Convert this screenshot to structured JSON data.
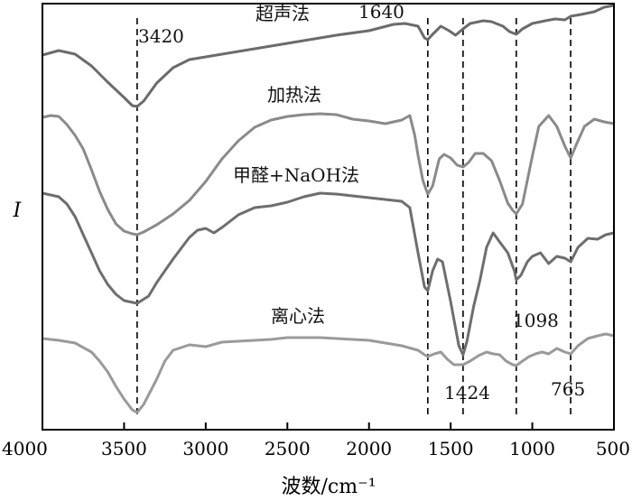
{
  "chart_data": {
    "type": "line",
    "title": "",
    "xlabel": "波数/cm⁻¹",
    "ylabel": "I",
    "xlim": [
      4000,
      500
    ],
    "x_reversed": true,
    "x_ticks": [
      4000,
      3500,
      3000,
      2500,
      2000,
      1500,
      1000,
      500
    ],
    "y_ticks_shown": false,
    "grid": false,
    "legend": "none",
    "series": [
      {
        "name": "超声法",
        "color": "#6b6b6b",
        "points": [
          [
            4000,
            61
          ],
          [
            3900,
            56
          ],
          [
            3800,
            60
          ],
          [
            3700,
            73
          ],
          [
            3600,
            91
          ],
          [
            3500,
            108
          ],
          [
            3450,
            117
          ],
          [
            3420,
            118
          ],
          [
            3380,
            112
          ],
          [
            3300,
            92
          ],
          [
            3200,
            75
          ],
          [
            3100,
            66
          ],
          [
            3000,
            63
          ],
          [
            2800,
            57
          ],
          [
            2600,
            51
          ],
          [
            2400,
            45
          ],
          [
            2200,
            39
          ],
          [
            2000,
            34
          ],
          [
            1850,
            27
          ],
          [
            1780,
            26
          ],
          [
            1700,
            29
          ],
          [
            1660,
            42
          ],
          [
            1640,
            44
          ],
          [
            1610,
            38
          ],
          [
            1560,
            29
          ],
          [
            1510,
            34
          ],
          [
            1470,
            39
          ],
          [
            1424,
            32
          ],
          [
            1380,
            26
          ],
          [
            1300,
            23
          ],
          [
            1250,
            24
          ],
          [
            1180,
            29
          ],
          [
            1140,
            35
          ],
          [
            1098,
            38
          ],
          [
            1060,
            32
          ],
          [
            1000,
            26
          ],
          [
            920,
            23
          ],
          [
            860,
            21
          ],
          [
            800,
            22
          ],
          [
            765,
            18
          ],
          [
            700,
            16
          ],
          [
            620,
            13
          ],
          [
            560,
            8
          ],
          [
            500,
            6
          ]
        ]
      },
      {
        "name": "加热法",
        "color": "#8a8a8a",
        "points": [
          [
            4000,
            130
          ],
          [
            3950,
            128
          ],
          [
            3900,
            129
          ],
          [
            3850,
            138
          ],
          [
            3800,
            150
          ],
          [
            3750,
            165
          ],
          [
            3700,
            188
          ],
          [
            3650,
            212
          ],
          [
            3600,
            232
          ],
          [
            3550,
            248
          ],
          [
            3500,
            256
          ],
          [
            3450,
            259
          ],
          [
            3420,
            260
          ],
          [
            3380,
            257
          ],
          [
            3300,
            249
          ],
          [
            3200,
            237
          ],
          [
            3100,
            222
          ],
          [
            3000,
            201
          ],
          [
            2900,
            176
          ],
          [
            2800,
            156
          ],
          [
            2700,
            141
          ],
          [
            2600,
            133
          ],
          [
            2500,
            129
          ],
          [
            2400,
            127
          ],
          [
            2300,
            126
          ],
          [
            2200,
            127
          ],
          [
            2100,
            132
          ],
          [
            2000,
            134
          ],
          [
            1900,
            137
          ],
          [
            1800,
            133
          ],
          [
            1750,
            128
          ],
          [
            1720,
            150
          ],
          [
            1700,
            172
          ],
          [
            1670,
            200
          ],
          [
            1640,
            215
          ],
          [
            1610,
            206
          ],
          [
            1570,
            176
          ],
          [
            1540,
            171
          ],
          [
            1500,
            175
          ],
          [
            1460,
            183
          ],
          [
            1424,
            185
          ],
          [
            1390,
            180
          ],
          [
            1350,
            170
          ],
          [
            1300,
            170
          ],
          [
            1250,
            178
          ],
          [
            1200,
            200
          ],
          [
            1150,
            225
          ],
          [
            1120,
            233
          ],
          [
            1098,
            237
          ],
          [
            1060,
            226
          ],
          [
            1000,
            173
          ],
          [
            960,
            140
          ],
          [
            900,
            128
          ],
          [
            850,
            140
          ],
          [
            800,
            162
          ],
          [
            765,
            175
          ],
          [
            730,
            160
          ],
          [
            680,
            140
          ],
          [
            620,
            132
          ],
          [
            560,
            135
          ],
          [
            500,
            137
          ]
        ]
      },
      {
        "name": "甲醛+NaOH法",
        "color": "#6e6e6e",
        "points": [
          [
            4000,
            214
          ],
          [
            3900,
            218
          ],
          [
            3850,
            226
          ],
          [
            3800,
            240
          ],
          [
            3750,
            260
          ],
          [
            3700,
            280
          ],
          [
            3650,
            300
          ],
          [
            3600,
            315
          ],
          [
            3550,
            326
          ],
          [
            3500,
            333
          ],
          [
            3420,
            336
          ],
          [
            3350,
            328
          ],
          [
            3300,
            313
          ],
          [
            3250,
            300
          ],
          [
            3200,
            287
          ],
          [
            3150,
            275
          ],
          [
            3100,
            263
          ],
          [
            3050,
            255
          ],
          [
            3000,
            253
          ],
          [
            2950,
            258
          ],
          [
            2900,
            252
          ],
          [
            2800,
            238
          ],
          [
            2700,
            230
          ],
          [
            2600,
            228
          ],
          [
            2500,
            224
          ],
          [
            2400,
            218
          ],
          [
            2300,
            214
          ],
          [
            2200,
            215
          ],
          [
            2100,
            217
          ],
          [
            2000,
            219
          ],
          [
            1900,
            221
          ],
          [
            1800,
            223
          ],
          [
            1750,
            230
          ],
          [
            1700,
            280
          ],
          [
            1660,
            318
          ],
          [
            1640,
            322
          ],
          [
            1610,
            300
          ],
          [
            1580,
            287
          ],
          [
            1550,
            290
          ],
          [
            1500,
            334
          ],
          [
            1450,
            383
          ],
          [
            1424,
            393
          ],
          [
            1400,
            378
          ],
          [
            1360,
            340
          ],
          [
            1320,
            310
          ],
          [
            1280,
            274
          ],
          [
            1240,
            258
          ],
          [
            1200,
            268
          ],
          [
            1150,
            280
          ],
          [
            1110,
            300
          ],
          [
            1098,
            310
          ],
          [
            1070,
            305
          ],
          [
            1030,
            290
          ],
          [
            1000,
            284
          ],
          [
            950,
            280
          ],
          [
            900,
            292
          ],
          [
            850,
            284
          ],
          [
            800,
            286
          ],
          [
            765,
            290
          ],
          [
            720,
            274
          ],
          [
            660,
            264
          ],
          [
            600,
            265
          ],
          [
            550,
            260
          ],
          [
            500,
            258
          ]
        ]
      },
      {
        "name": "离心法",
        "color": "#9a9a9a",
        "points": [
          [
            4000,
            375
          ],
          [
            3900,
            377
          ],
          [
            3800,
            380
          ],
          [
            3700,
            390
          ],
          [
            3650,
            400
          ],
          [
            3600,
            412
          ],
          [
            3550,
            428
          ],
          [
            3500,
            442
          ],
          [
            3450,
            454
          ],
          [
            3420,
            457
          ],
          [
            3380,
            448
          ],
          [
            3300,
            420
          ],
          [
            3250,
            400
          ],
          [
            3200,
            388
          ],
          [
            3100,
            382
          ],
          [
            3000,
            384
          ],
          [
            2900,
            379
          ],
          [
            2800,
            378
          ],
          [
            2700,
            377
          ],
          [
            2600,
            376
          ],
          [
            2500,
            374
          ],
          [
            2400,
            374
          ],
          [
            2300,
            374
          ],
          [
            2200,
            375
          ],
          [
            2100,
            376
          ],
          [
            2000,
            377
          ],
          [
            1900,
            380
          ],
          [
            1800,
            383
          ],
          [
            1700,
            388
          ],
          [
            1660,
            393
          ],
          [
            1640,
            395
          ],
          [
            1600,
            392
          ],
          [
            1560,
            390
          ],
          [
            1520,
            398
          ],
          [
            1480,
            404
          ],
          [
            1424,
            404
          ],
          [
            1380,
            400
          ],
          [
            1330,
            394
          ],
          [
            1280,
            390
          ],
          [
            1240,
            392
          ],
          [
            1200,
            393
          ],
          [
            1160,
            400
          ],
          [
            1120,
            404
          ],
          [
            1098,
            405
          ],
          [
            1060,
            400
          ],
          [
            1020,
            395
          ],
          [
            980,
            392
          ],
          [
            940,
            390
          ],
          [
            900,
            392
          ],
          [
            850,
            386
          ],
          [
            800,
            390
          ],
          [
            765,
            392
          ],
          [
            720,
            383
          ],
          [
            660,
            375
          ],
          [
            600,
            372
          ],
          [
            550,
            370
          ],
          [
            500,
            372
          ]
        ]
      }
    ],
    "reference_lines": [
      3420,
      1640,
      1424,
      1098,
      765
    ],
    "annotations": {
      "peak_3420": "3420",
      "peak_1640": "1640",
      "peak_1424": "1424",
      "peak_1098": "1098",
      "peak_765": "765",
      "label_ultrasonic": "超声法",
      "label_heating": "加热法",
      "label_formaldehyde": "甲醛+NaOH法",
      "label_centrifuge": "离心法"
    }
  }
}
